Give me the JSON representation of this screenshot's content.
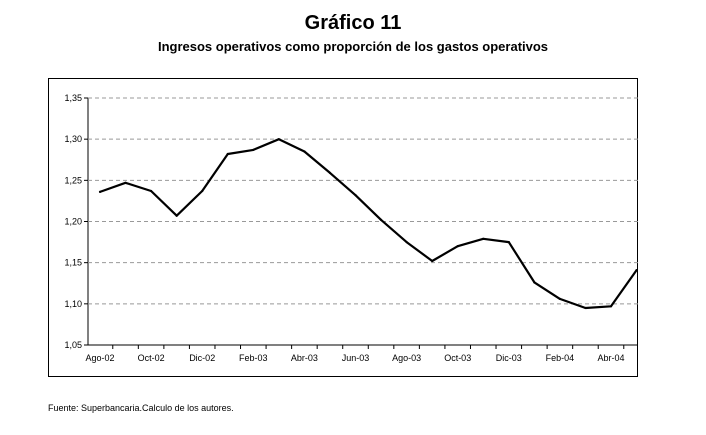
{
  "chart_data": {
    "type": "line",
    "title": "Gráfico 11",
    "subtitle": "Ingresos operativos como proporción de los  gastos operativos",
    "xlabel": "",
    "ylabel": "",
    "ylim": [
      1.05,
      1.35
    ],
    "yticks": [
      "1,05",
      "1,10",
      "1,15",
      "1,20",
      "1,25",
      "1,30",
      "1,35"
    ],
    "xtick_labels": [
      "Ago-02",
      "Oct-02",
      "Dic-02",
      "Feb-03",
      "Abr-03",
      "Jun-03",
      "Ago-03",
      "Oct-03",
      "Dic-03",
      "Feb-04",
      "Abr-04"
    ],
    "x": [
      "Ago-02",
      "Sep-02",
      "Oct-02",
      "Nov-02",
      "Dic-02",
      "Ene-03",
      "Feb-03",
      "Mar-03",
      "Abr-03",
      "May-03",
      "Jun-03",
      "Jul-03",
      "Ago-03",
      "Sep-03",
      "Oct-03",
      "Nov-03",
      "Dic-03",
      "Ene-04",
      "Feb-04",
      "Mar-04",
      "Abr-04",
      "May-04"
    ],
    "series": [
      {
        "name": "Ingresos/Gastos operativos",
        "values": [
          1.236,
          1.247,
          1.237,
          1.207,
          1.237,
          1.282,
          1.287,
          1.3,
          1.285,
          1.259,
          1.232,
          1.202,
          1.175,
          1.152,
          1.17,
          1.179,
          1.175,
          1.126,
          1.106,
          1.095,
          1.097,
          1.141
        ]
      }
    ],
    "grid": true,
    "source": "Fuente: Superbancaria.Calculo de los autores."
  }
}
